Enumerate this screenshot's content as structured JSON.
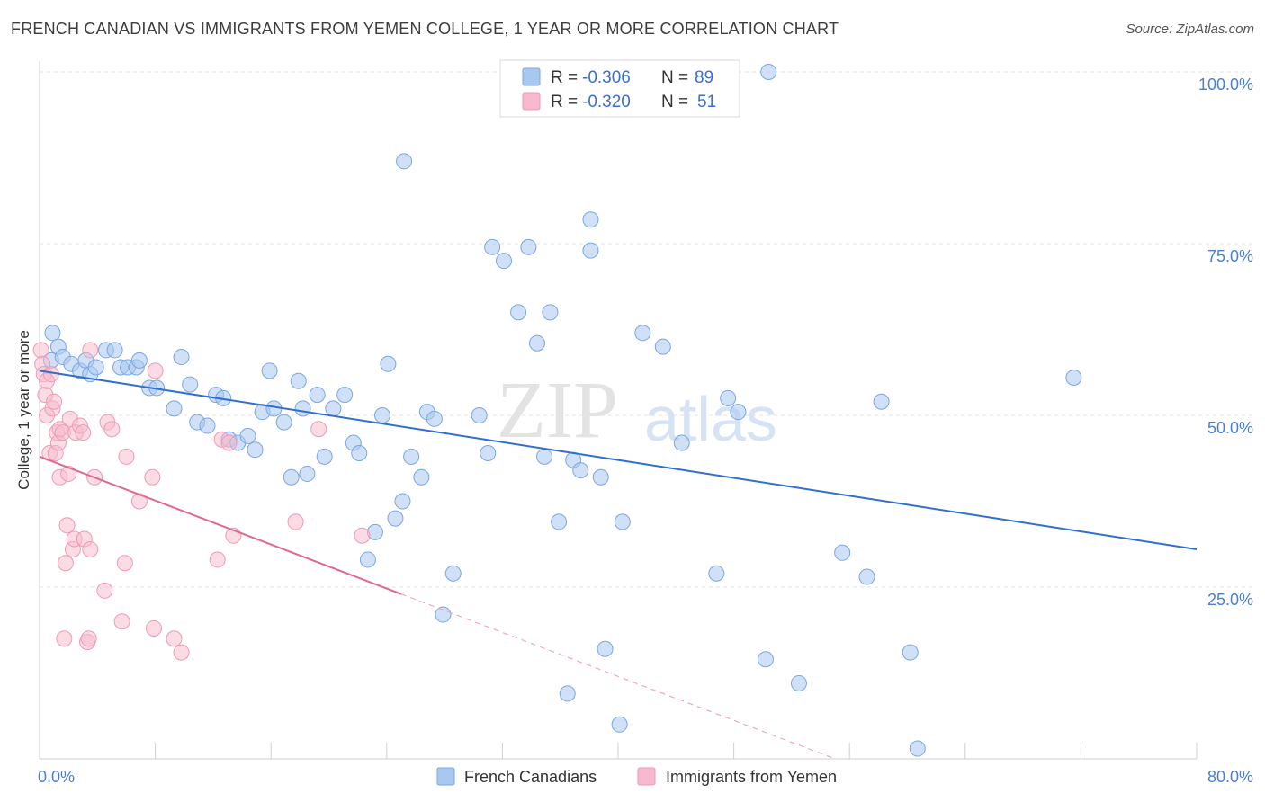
{
  "header": {
    "title": "FRENCH CANADIAN VS IMMIGRANTS FROM YEMEN COLLEGE, 1 YEAR OR MORE CORRELATION CHART",
    "source": "Source: ZipAtlas.com"
  },
  "legend_top": {
    "rows": [
      {
        "r_label": "R =",
        "r_value": "-0.306",
        "n_label": "N =",
        "n_value": "89",
        "color": "#a9c8f0"
      },
      {
        "r_label": "R =",
        "r_value": "-0.320",
        "n_label": "N =",
        "n_value": "51",
        "color": "#f7b9cb"
      }
    ]
  },
  "legend_bottom": {
    "items": [
      {
        "label": "French Canadians",
        "color": "#a9c8f0"
      },
      {
        "label": "Immigrants from Yemen",
        "color": "#f7b9cb"
      }
    ]
  },
  "watermark": {
    "zip": "ZIP",
    "atlas": "atlas"
  },
  "chart_data": {
    "type": "scatter",
    "title": "FRENCH CANADIAN VS IMMIGRANTS FROM YEMEN COLLEGE, 1 YEAR OR MORE CORRELATION CHART",
    "xlabel": "",
    "ylabel": "College, 1 year or more",
    "xlim": [
      0,
      80
    ],
    "ylim": [
      0,
      100
    ],
    "x_tick_labels": [
      "0.0%",
      "80.0%"
    ],
    "y_tick_labels": [
      "25.0%",
      "50.0%",
      "75.0%",
      "100.0%"
    ],
    "y_ticks": [
      25,
      50,
      75,
      100
    ],
    "grid": true,
    "legend_position": "top-center",
    "colors": {
      "blue_fill": "#a9c8f0",
      "blue_line": "#2f6fd0",
      "pink_fill": "#f7b9cb",
      "pink_line": "#e06890"
    },
    "series": [
      {
        "name": "French Canadians",
        "r": -0.306,
        "n": 89,
        "trend": {
          "x": [
            0,
            80
          ],
          "y": [
            56.5,
            30.5
          ]
        },
        "points": [
          [
            0.8,
            58
          ],
          [
            0.9,
            62
          ],
          [
            1.3,
            60
          ],
          [
            1.6,
            58.5
          ],
          [
            2.2,
            57.5
          ],
          [
            2.8,
            56.5
          ],
          [
            3.2,
            58
          ],
          [
            3.5,
            56
          ],
          [
            3.9,
            57
          ],
          [
            4.6,
            59.5
          ],
          [
            5.2,
            59.5
          ],
          [
            5.6,
            57
          ],
          [
            6.1,
            57
          ],
          [
            6.7,
            57
          ],
          [
            6.9,
            58
          ],
          [
            7.6,
            54
          ],
          [
            8.1,
            54
          ],
          [
            9.3,
            51
          ],
          [
            9.8,
            58.5
          ],
          [
            10.4,
            54.5
          ],
          [
            10.9,
            49
          ],
          [
            11.6,
            48.5
          ],
          [
            12.2,
            53
          ],
          [
            12.7,
            52.5
          ],
          [
            13.1,
            46.5
          ],
          [
            13.7,
            46
          ],
          [
            14.4,
            47
          ],
          [
            14.9,
            45
          ],
          [
            15.4,
            50.5
          ],
          [
            15.9,
            56.5
          ],
          [
            16.2,
            51
          ],
          [
            16.9,
            49
          ],
          [
            17.4,
            41
          ],
          [
            17.9,
            55
          ],
          [
            18.2,
            51
          ],
          [
            18.5,
            41.5
          ],
          [
            19.2,
            53
          ],
          [
            19.7,
            44
          ],
          [
            20.3,
            51
          ],
          [
            21.1,
            53
          ],
          [
            21.7,
            46
          ],
          [
            22.1,
            44.5
          ],
          [
            22.7,
            29
          ],
          [
            23.2,
            33
          ],
          [
            23.7,
            50
          ],
          [
            24.1,
            57.5
          ],
          [
            24.6,
            35
          ],
          [
            25.1,
            37.5
          ],
          [
            25.7,
            44
          ],
          [
            26.4,
            41
          ],
          [
            26.8,
            50.5
          ],
          [
            27.3,
            49.5
          ],
          [
            27.9,
            21
          ],
          [
            28.6,
            27
          ],
          [
            30.4,
            50
          ],
          [
            31.0,
            44.5
          ],
          [
            25.2,
            87
          ],
          [
            31.3,
            74.5
          ],
          [
            32.1,
            72.5
          ],
          [
            33.1,
            65
          ],
          [
            33.8,
            74.5
          ],
          [
            34.4,
            60.5
          ],
          [
            34.9,
            44
          ],
          [
            35.3,
            65
          ],
          [
            35.9,
            34.5
          ],
          [
            36.5,
            9.5
          ],
          [
            36.9,
            43.5
          ],
          [
            37.4,
            42
          ],
          [
            38.1,
            78.5
          ],
          [
            38.1,
            74
          ],
          [
            38.8,
            41
          ],
          [
            39.1,
            16
          ],
          [
            40.1,
            5
          ],
          [
            40.3,
            34.5
          ],
          [
            41.7,
            62
          ],
          [
            43.1,
            60
          ],
          [
            44.4,
            46
          ],
          [
            46.8,
            27
          ],
          [
            47.6,
            52.5
          ],
          [
            48.3,
            50.5
          ],
          [
            50.2,
            14.5
          ],
          [
            50.4,
            100
          ],
          [
            52.5,
            11
          ],
          [
            55.5,
            30
          ],
          [
            57.2,
            26.5
          ],
          [
            58.2,
            52
          ],
          [
            60.2,
            15.5
          ],
          [
            60.7,
            1.5
          ],
          [
            71.5,
            55.5
          ]
        ]
      },
      {
        "name": "Immigrants from Yemen",
        "r": -0.32,
        "n": 51,
        "trend": {
          "x": [
            0,
            25
          ],
          "y": [
            44,
            24
          ]
        },
        "trend_dashed": {
          "x": [
            25,
            55
          ],
          "y": [
            24,
            0
          ]
        },
        "points": [
          [
            0.1,
            59.5
          ],
          [
            0.2,
            57.5
          ],
          [
            0.3,
            56
          ],
          [
            0.4,
            53
          ],
          [
            0.5,
            55
          ],
          [
            0.5,
            50
          ],
          [
            0.7,
            44.5
          ],
          [
            0.8,
            56
          ],
          [
            0.9,
            51
          ],
          [
            1.0,
            52
          ],
          [
            1.1,
            44.5
          ],
          [
            1.2,
            47.5
          ],
          [
            1.3,
            46
          ],
          [
            1.4,
            48
          ],
          [
            1.4,
            41
          ],
          [
            1.6,
            47.5
          ],
          [
            1.7,
            17.5
          ],
          [
            1.8,
            28.5
          ],
          [
            1.9,
            34
          ],
          [
            2.0,
            41.5
          ],
          [
            2.1,
            49.5
          ],
          [
            2.3,
            30.5
          ],
          [
            2.4,
            32
          ],
          [
            2.5,
            47.5
          ],
          [
            2.8,
            48.5
          ],
          [
            3.0,
            47.5
          ],
          [
            3.1,
            32
          ],
          [
            3.3,
            17
          ],
          [
            3.4,
            17.5
          ],
          [
            3.5,
            30.5
          ],
          [
            3.8,
            41
          ],
          [
            4.5,
            24.5
          ],
          [
            4.7,
            49
          ],
          [
            5.0,
            48
          ],
          [
            5.7,
            20
          ],
          [
            5.9,
            28.5
          ],
          [
            6.0,
            44
          ],
          [
            6.9,
            37.5
          ],
          [
            7.8,
            41
          ],
          [
            7.9,
            19
          ],
          [
            8.0,
            56.5
          ],
          [
            9.3,
            17.5
          ],
          [
            9.8,
            15.5
          ],
          [
            12.3,
            29
          ],
          [
            12.6,
            46.5
          ],
          [
            13.4,
            32.5
          ],
          [
            13.1,
            46
          ],
          [
            17.7,
            34.5
          ],
          [
            19.3,
            48
          ],
          [
            22.3,
            32.5
          ],
          [
            3.5,
            59.5
          ]
        ]
      }
    ]
  }
}
